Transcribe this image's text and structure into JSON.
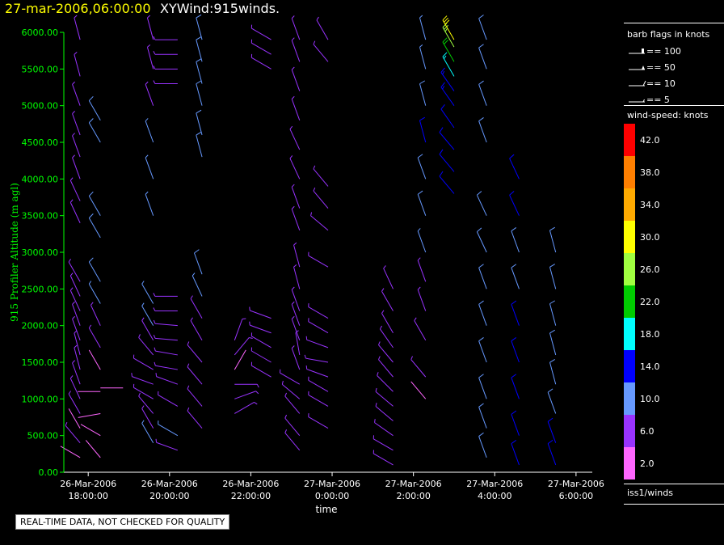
{
  "header": {
    "date_time": "27-mar-2006,06:00:00",
    "title": "XYWind:915winds."
  },
  "quality_note": "REAL-TIME DATA, NOT CHECKED FOR QUALITY",
  "legend": {
    "barb_title": "barb flags in knots",
    "barb_items": [
      "== 100",
      "== 50",
      "== 10",
      "== 5"
    ],
    "speed_title": "wind-speed: knots",
    "speed_bins": [
      {
        "label": "42.0",
        "color": "#ff0000"
      },
      {
        "label": "38.0",
        "color": "#ff7f00"
      },
      {
        "label": "34.0",
        "color": "#ffaa00"
      },
      {
        "label": "30.0",
        "color": "#ffff00"
      },
      {
        "label": "26.0",
        "color": "#a0ff40"
      },
      {
        "label": "22.0",
        "color": "#00cc00"
      },
      {
        "label": "18.0",
        "color": "#00ffff"
      },
      {
        "label": "14.0",
        "color": "#0000ff"
      },
      {
        "label": "10.0",
        "color": "#6699ff"
      },
      {
        "label": "6.0",
        "color": "#9933ff"
      },
      {
        "label": "2.0",
        "color": "#ff66ff"
      }
    ],
    "source": "iss1/winds"
  },
  "chart_data": {
    "type": "scatter",
    "xlabel": "time",
    "ylabel": "915 Profiler Altitude (m agl)",
    "axis_color": "#00ff00",
    "ylim": [
      0,
      6000
    ],
    "y_ticks": [
      "0.00",
      "500.00",
      "1000.00",
      "1500.00",
      "2000.00",
      "2500.00",
      "3000.00",
      "3500.00",
      "4000.00",
      "4500.00",
      "5000.00",
      "5500.00",
      "6000.00"
    ],
    "x_ticks": [
      {
        "line1": "26-Mar-2006",
        "line2": "18:00:00"
      },
      {
        "line1": "26-Mar-2006",
        "line2": "20:00:00"
      },
      {
        "line1": "26-Mar-2006",
        "line2": "22:00:00"
      },
      {
        "line1": "27-Mar-2006",
        "line2": "0:00:00"
      },
      {
        "line1": "27-Mar-2006",
        "line2": "2:00:00"
      },
      {
        "line1": "27-Mar-2006",
        "line2": "4:00:00"
      },
      {
        "line1": "27-Mar-2006",
        "line2": "6:00:00"
      }
    ],
    "x_hours": [
      0,
      2,
      4,
      6,
      8,
      10,
      12
    ],
    "xlim_hours": [
      -0.6,
      12.4
    ],
    "profiles": [
      {
        "t": -0.2,
        "levels": [
          [
            200,
            4,
            300
          ],
          [
            400,
            5,
            320
          ],
          [
            600,
            4,
            330
          ],
          [
            800,
            6,
            330
          ],
          [
            1000,
            5,
            335
          ],
          [
            1200,
            7,
            340
          ],
          [
            1400,
            6,
            345
          ],
          [
            1600,
            6,
            345
          ],
          [
            1800,
            7,
            340
          ],
          [
            2000,
            8,
            340
          ],
          [
            2200,
            7,
            335
          ],
          [
            2400,
            7,
            335
          ],
          [
            2600,
            8,
            330
          ],
          [
            3400,
            7,
            335
          ],
          [
            3700,
            8,
            335
          ],
          [
            4000,
            7,
            340
          ],
          [
            4300,
            7,
            340
          ],
          [
            4600,
            7,
            340
          ],
          [
            5000,
            7,
            340
          ],
          [
            5400,
            7,
            345
          ],
          [
            5900,
            8,
            345
          ]
        ]
      },
      {
        "t": 0.3,
        "levels": [
          [
            200,
            3,
            320
          ],
          [
            500,
            4,
            300
          ],
          [
            800,
            3,
            260
          ],
          [
            1100,
            3,
            270
          ],
          [
            1150,
            2,
            90
          ],
          [
            1400,
            4,
            330
          ],
          [
            1700,
            5,
            330
          ],
          [
            2000,
            7,
            335
          ],
          [
            2300,
            9,
            330
          ],
          [
            2600,
            10,
            330
          ],
          [
            3200,
            10,
            330
          ],
          [
            3500,
            11,
            330
          ],
          [
            4500,
            12,
            330
          ],
          [
            4800,
            11,
            330
          ]
        ]
      },
      {
        "t": 1.6,
        "levels": [
          [
            400,
            9,
            330
          ],
          [
            600,
            8,
            330
          ],
          [
            800,
            6,
            320
          ],
          [
            1000,
            6,
            300
          ],
          [
            1200,
            5,
            290
          ],
          [
            1400,
            7,
            300
          ],
          [
            1600,
            8,
            320
          ],
          [
            1800,
            8,
            330
          ],
          [
            2000,
            9,
            330
          ],
          [
            2300,
            9,
            330
          ],
          [
            3500,
            9,
            340
          ],
          [
            4000,
            9,
            340
          ],
          [
            4500,
            9,
            340
          ],
          [
            5000,
            8,
            340
          ],
          [
            5500,
            8,
            345
          ],
          [
            5900,
            8,
            345
          ]
        ]
      },
      {
        "t": 2.2,
        "levels": [
          [
            300,
            7,
            290
          ],
          [
            500,
            9,
            300
          ],
          [
            900,
            6,
            300
          ],
          [
            1200,
            6,
            290
          ],
          [
            1400,
            7,
            280
          ],
          [
            1600,
            7,
            280
          ],
          [
            1800,
            7,
            275
          ],
          [
            2000,
            7,
            275
          ],
          [
            2200,
            7,
            270
          ],
          [
            2400,
            7,
            270
          ],
          [
            5300,
            7,
            270
          ],
          [
            5500,
            7,
            270
          ],
          [
            5700,
            7,
            270
          ],
          [
            5900,
            7,
            270
          ]
        ]
      },
      {
        "t": 2.8,
        "levels": [
          [
            600,
            8,
            320
          ],
          [
            900,
            8,
            320
          ],
          [
            1200,
            7,
            320
          ],
          [
            1500,
            7,
            320
          ],
          [
            1800,
            8,
            330
          ],
          [
            2100,
            8,
            330
          ],
          [
            2400,
            9,
            335
          ],
          [
            2700,
            10,
            340
          ],
          [
            4300,
            10,
            345
          ],
          [
            4600,
            10,
            345
          ],
          [
            5000,
            10,
            345
          ],
          [
            5300,
            10,
            345
          ],
          [
            5600,
            10,
            345
          ],
          [
            5900,
            10,
            345
          ]
        ]
      },
      {
        "t": 3.6,
        "levels": [
          [
            800,
            6,
            60
          ],
          [
            1000,
            6,
            70
          ],
          [
            1200,
            5,
            90
          ],
          [
            1400,
            4,
            30
          ],
          [
            1600,
            5,
            40
          ],
          [
            1800,
            5,
            20
          ]
        ]
      },
      {
        "t": 4.5,
        "levels": [
          [
            1300,
            6,
            300
          ],
          [
            1500,
            6,
            300
          ],
          [
            1700,
            7,
            300
          ],
          [
            1900,
            7,
            290
          ],
          [
            2100,
            7,
            290
          ],
          [
            5500,
            7,
            300
          ],
          [
            5700,
            7,
            300
          ],
          [
            5900,
            7,
            300
          ]
        ]
      },
      {
        "t": 5.2,
        "levels": [
          [
            300,
            6,
            320
          ],
          [
            500,
            6,
            320
          ],
          [
            800,
            6,
            320
          ],
          [
            1000,
            5,
            310
          ],
          [
            1200,
            6,
            300
          ],
          [
            1400,
            5,
            340
          ],
          [
            1600,
            5,
            350
          ],
          [
            1800,
            6,
            340
          ],
          [
            2000,
            6,
            340
          ],
          [
            2200,
            7,
            340
          ],
          [
            2500,
            7,
            345
          ],
          [
            2800,
            7,
            345
          ],
          [
            3300,
            8,
            340
          ],
          [
            3600,
            8,
            340
          ],
          [
            4000,
            8,
            335
          ],
          [
            4400,
            8,
            335
          ],
          [
            4800,
            8,
            340
          ],
          [
            5200,
            8,
            340
          ],
          [
            5600,
            8,
            340
          ],
          [
            5900,
            8,
            340
          ]
        ]
      },
      {
        "t": 5.9,
        "levels": [
          [
            600,
            5,
            300
          ],
          [
            900,
            5,
            300
          ],
          [
            1100,
            6,
            300
          ],
          [
            1300,
            6,
            290
          ],
          [
            1500,
            6,
            280
          ],
          [
            1700,
            6,
            290
          ],
          [
            1900,
            7,
            300
          ],
          [
            2100,
            7,
            300
          ],
          [
            2800,
            7,
            300
          ],
          [
            3300,
            7,
            310
          ],
          [
            3600,
            7,
            320
          ],
          [
            3900,
            7,
            320
          ],
          [
            5600,
            7,
            320
          ],
          [
            5900,
            7,
            330
          ]
        ]
      },
      {
        "t": 7.5,
        "levels": [
          [
            100,
            6,
            300
          ],
          [
            300,
            6,
            300
          ],
          [
            500,
            6,
            305
          ],
          [
            700,
            6,
            310
          ],
          [
            900,
            6,
            310
          ],
          [
            1100,
            6,
            315
          ],
          [
            1300,
            6,
            320
          ],
          [
            1500,
            6,
            320
          ],
          [
            1700,
            7,
            325
          ],
          [
            1900,
            7,
            330
          ],
          [
            2200,
            7,
            330
          ],
          [
            2500,
            7,
            335
          ]
        ]
      },
      {
        "t": 8.3,
        "levels": [
          [
            1000,
            4,
            320
          ],
          [
            1300,
            5,
            320
          ],
          [
            1800,
            5,
            330
          ],
          [
            2200,
            7,
            340
          ],
          [
            2600,
            8,
            340
          ],
          [
            3000,
            9,
            340
          ],
          [
            3500,
            10,
            340
          ],
          [
            4000,
            11,
            340
          ],
          [
            4500,
            13,
            345
          ],
          [
            5000,
            10,
            345
          ],
          [
            5500,
            9,
            345
          ],
          [
            5900,
            9,
            345
          ]
        ]
      },
      {
        "t": 9.0,
        "levels": [
          [
            3800,
            13,
            320
          ],
          [
            4100,
            13,
            320
          ],
          [
            4400,
            14,
            320
          ],
          [
            4700,
            14,
            325
          ],
          [
            5000,
            15,
            325
          ],
          [
            5200,
            16,
            325
          ],
          [
            5400,
            18,
            330
          ],
          [
            5600,
            22,
            330
          ],
          [
            5800,
            26,
            330
          ],
          [
            5900,
            30,
            330
          ]
        ]
      },
      {
        "t": 9.8,
        "levels": [
          [
            200,
            12,
            340
          ],
          [
            600,
            12,
            340
          ],
          [
            1000,
            12,
            340
          ],
          [
            1500,
            10,
            340
          ],
          [
            2000,
            10,
            340
          ],
          [
            2500,
            10,
            340
          ],
          [
            3000,
            12,
            335
          ],
          [
            3500,
            12,
            335
          ],
          [
            4500,
            11,
            340
          ],
          [
            5000,
            10,
            340
          ],
          [
            5500,
            10,
            340
          ],
          [
            5900,
            10,
            340
          ]
        ]
      },
      {
        "t": 10.6,
        "levels": [
          [
            100,
            14,
            340
          ],
          [
            500,
            14,
            340
          ],
          [
            1000,
            14,
            340
          ],
          [
            1500,
            13,
            340
          ],
          [
            2000,
            13,
            340
          ],
          [
            2500,
            12,
            340
          ],
          [
            3000,
            12,
            340
          ],
          [
            3500,
            13,
            335
          ],
          [
            4000,
            14,
            335
          ]
        ]
      },
      {
        "t": 11.5,
        "levels": [
          [
            100,
            14,
            340
          ],
          [
            400,
            13,
            340
          ],
          [
            800,
            12,
            340
          ],
          [
            1200,
            12,
            345
          ],
          [
            1600,
            12,
            345
          ],
          [
            2000,
            11,
            345
          ],
          [
            2500,
            11,
            345
          ],
          [
            3000,
            11,
            345
          ]
        ]
      }
    ]
  }
}
